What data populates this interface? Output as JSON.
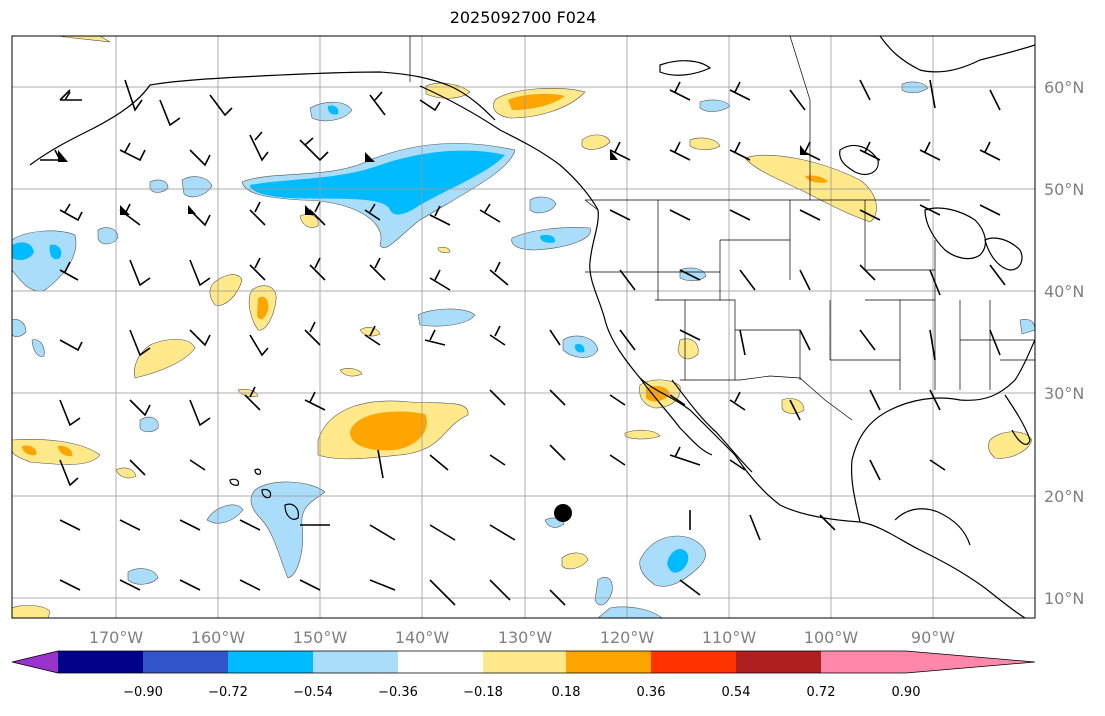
{
  "title": "2025092700 F024",
  "lat_labels": [
    "60°N",
    "50°N",
    "40°N",
    "30°N",
    "20°N",
    "10°N"
  ],
  "lon_labels": [
    "170°W",
    "160°W",
    "150°W",
    "140°W",
    "130°W",
    "120°W",
    "110°W",
    "100°W",
    "90°W"
  ],
  "colorbar": {
    "ticks": [
      "−0.90",
      "−0.72",
      "−0.54",
      "−0.36",
      "−0.18",
      "0.18",
      "0.36",
      "0.54",
      "0.72",
      "0.90"
    ],
    "colors": [
      "#9933cc",
      "#000088",
      "#3355cc",
      "#00bbff",
      "#aaddfa",
      "#ffffff",
      "#ffe98a",
      "#ffa500",
      "#ff3300",
      "#b02020",
      "#ff88aa"
    ]
  },
  "legend_colors": {
    "neg_light": "#aaddfa",
    "neg_mid": "#00bbff",
    "pos_light": "#ffe98a",
    "pos_mid": "#ffa500",
    "pos_strong": "#ff3300"
  },
  "marker": {
    "label": "",
    "color": "#000000"
  }
}
